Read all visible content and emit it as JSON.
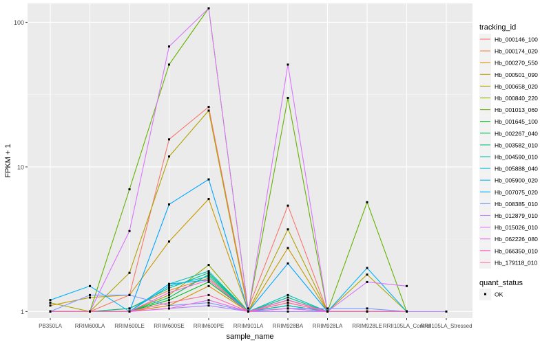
{
  "chart_data": {
    "type": "line",
    "xlabel": "sample_name",
    "ylabel": "FPKM + 1",
    "y_scale": "log10",
    "ylim": [
      0.9,
      135
    ],
    "y_ticks": [
      1,
      10,
      100
    ],
    "y_tick_labels": [
      "1",
      "10",
      "100"
    ],
    "grid": true,
    "legend_position": "right",
    "categories": [
      "PB350LA",
      "RRIM600LA",
      "RRIM600LE",
      "RRIM600SE",
      "RRIM600PE",
      "RRIM901LA",
      "RRIM928BA",
      "RRIM928LA",
      "RRIM928LE",
      "RRII105LA_Control",
      "RRII105LA_Stressed"
    ],
    "legend_title": "tracking_id",
    "shape_legend_title": "quant_status",
    "shape_legend_items": [
      "OK"
    ],
    "series": [
      {
        "name": "Hb_000146_100",
        "color": "#F8766D",
        "values": [
          1.0,
          1.0,
          1.3,
          15.5,
          26.0,
          1.05,
          5.4,
          1.0,
          1.0,
          1.0,
          null
        ]
      },
      {
        "name": "Hb_000174_020",
        "color": "#EC8239",
        "values": [
          1.0,
          1.0,
          1.05,
          1.4,
          1.7,
          1.0,
          1.2,
          1.0,
          1.0,
          1.0,
          null
        ]
      },
      {
        "name": "Hb_000270_550",
        "color": "#DB8E00",
        "values": [
          1.0,
          1.0,
          1.0,
          1.1,
          1.5,
          1.0,
          1.15,
          1.0,
          1.0,
          1.0,
          null
        ]
      },
      {
        "name": "Hb_000501_090",
        "color": "#C79800",
        "values": [
          1.1,
          1.25,
          1.3,
          3.05,
          6.0,
          1.0,
          2.75,
          1.0,
          1.0,
          1.0,
          null
        ]
      },
      {
        "name": "Hb_000658_020",
        "color": "#AEA200",
        "values": [
          1.15,
          1.0,
          1.85,
          11.8,
          24.5,
          1.0,
          3.7,
          1.0,
          1.8,
          1.0,
          null
        ]
      },
      {
        "name": "Hb_000840_220",
        "color": "#8FAA00",
        "values": [
          1.0,
          1.0,
          1.0,
          1.3,
          2.1,
          1.0,
          1.1,
          1.0,
          1.0,
          1.0,
          null
        ]
      },
      {
        "name": "Hb_001013_060",
        "color": "#64B200",
        "values": [
          1.0,
          1.0,
          7.0,
          51.0,
          125.0,
          1.0,
          30.0,
          1.0,
          5.7,
          1.0,
          null
        ]
      },
      {
        "name": "Hb_001645_100",
        "color": "#00B81B",
        "values": [
          1.0,
          1.0,
          1.0,
          1.2,
          1.6,
          1.0,
          1.1,
          1.0,
          1.0,
          1.0,
          null
        ]
      },
      {
        "name": "Hb_002267_040",
        "color": "#00BD5C",
        "values": [
          1.0,
          1.0,
          1.0,
          1.25,
          1.8,
          1.0,
          1.2,
          1.0,
          1.0,
          1.0,
          null
        ]
      },
      {
        "name": "Hb_003582_010",
        "color": "#00C08E",
        "values": [
          1.0,
          1.0,
          1.05,
          1.45,
          1.85,
          1.0,
          1.25,
          1.0,
          1.0,
          1.0,
          null
        ]
      },
      {
        "name": "Hb_004590_010",
        "color": "#00C1B7",
        "values": [
          1.0,
          1.0,
          1.0,
          1.55,
          1.9,
          1.0,
          1.3,
          1.0,
          1.0,
          1.0,
          null
        ]
      },
      {
        "name": "Hb_005888_040",
        "color": "#00BDDC",
        "values": [
          1.0,
          1.0,
          1.0,
          1.5,
          1.75,
          1.0,
          1.1,
          1.0,
          1.0,
          1.0,
          null
        ]
      },
      {
        "name": "Hb_005900_020",
        "color": "#00B5F7",
        "values": [
          1.2,
          1.5,
          1.0,
          1.55,
          1.65,
          1.0,
          1.05,
          1.0,
          2.0,
          1.0,
          null
        ]
      },
      {
        "name": "Hb_007075_020",
        "color": "#00A5FF",
        "values": [
          1.0,
          1.0,
          1.0,
          5.5,
          8.2,
          1.0,
          2.15,
          1.0,
          1.0,
          1.0,
          null
        ]
      },
      {
        "name": "Hb_008385_010",
        "color": "#7B9AFF",
        "values": [
          1.0,
          1.3,
          1.3,
          1.1,
          1.15,
          1.0,
          1.05,
          1.05,
          1.05,
          1.0,
          null
        ]
      },
      {
        "name": "Hb_012879_010",
        "color": "#B385FF",
        "values": [
          1.0,
          1.0,
          1.0,
          1.05,
          1.1,
          1.0,
          1.0,
          1.0,
          1.0,
          1.0,
          1.0
        ]
      },
      {
        "name": "Hb_015026_010",
        "color": "#D874FD",
        "values": [
          1.0,
          1.0,
          3.6,
          68.0,
          125.0,
          1.0,
          51.0,
          1.0,
          1.6,
          1.5,
          null
        ]
      },
      {
        "name": "Hb_062226_080",
        "color": "#EF67EB",
        "values": [
          1.0,
          1.0,
          1.0,
          1.05,
          1.2,
          1.0,
          1.05,
          1.0,
          1.0,
          1.0,
          null
        ]
      },
      {
        "name": "Hb_066350_010",
        "color": "#FD61D1",
        "values": [
          1.0,
          1.0,
          1.0,
          1.35,
          1.65,
          1.0,
          1.2,
          1.0,
          1.0,
          1.0,
          null
        ]
      },
      {
        "name": "Hb_179118_010",
        "color": "#FF67A4",
        "values": [
          1.0,
          1.0,
          1.0,
          1.15,
          1.3,
          1.0,
          1.15,
          1.0,
          1.0,
          1.0,
          null
        ]
      }
    ],
    "teal_peak_series": {
      "name_ref": "Hb_003582_010",
      "note": ""
    }
  }
}
